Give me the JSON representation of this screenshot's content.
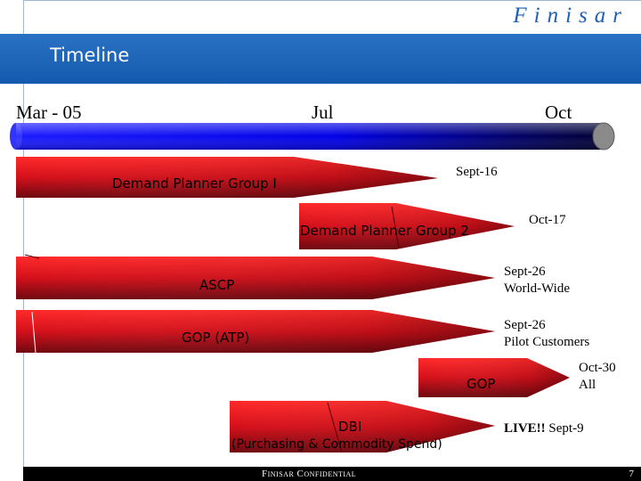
{
  "header": {
    "brand": "Finisar",
    "title": "Timeline"
  },
  "timeline": {
    "months": [
      "Mar - 05",
      "Jul",
      "Oct"
    ]
  },
  "milestones": [
    {
      "bar_label": "Demand Planner Group I",
      "date_lines": [
        "Sept-16"
      ]
    },
    {
      "bar_label": "Demand Planner Group 2",
      "date_lines": [
        "Oct-17"
      ]
    },
    {
      "bar_label": "ASCP",
      "date_lines": [
        "Sept-26",
        "World-Wide"
      ]
    },
    {
      "bar_label": "GOP (ATP)",
      "date_lines": [
        "Sept-26",
        "Pilot Customers"
      ]
    },
    {
      "bar_label": "GOP",
      "date_lines": [
        "Oct-30",
        "All"
      ]
    },
    {
      "bar_label_lines": [
        "DBI",
        "(Purchasing & Commodity Spend)"
      ],
      "date_prefix": "LIVE!!",
      "date_lines": [
        "Sept-9"
      ]
    }
  ],
  "footer": {
    "confidential": "Finisar Confidential",
    "page_number": "7"
  },
  "colors": {
    "title_band": "#1a64b8",
    "timeline_bar": "#0000ff",
    "arrow_red": "#e0141e",
    "arrow_dark": "#7a0a12"
  }
}
